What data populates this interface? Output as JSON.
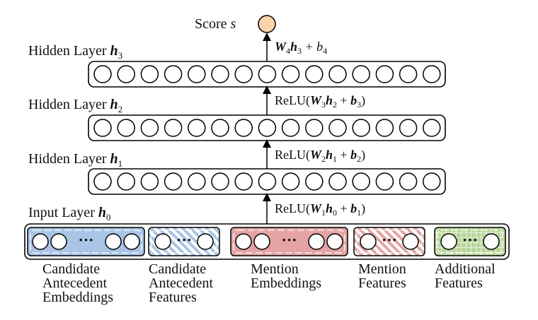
{
  "score": {
    "label": "Score",
    "var": "s",
    "color": "#fbd3a9"
  },
  "hidden_layers": [
    {
      "label": "Hidden Layer",
      "sym": "h",
      "sub": "3",
      "eq": {
        "pre": "",
        "w": "W",
        "wsub": "4",
        "h": "h",
        "hsub": "3",
        "plus": " + b",
        "bsub": "4",
        "bbold": false,
        "post": ""
      }
    },
    {
      "label": "Hidden Layer",
      "sym": "h",
      "sub": "2",
      "eq": {
        "pre": "ReLU(",
        "w": "W",
        "wsub": "3",
        "h": "h",
        "hsub": "2",
        "plus": " + ",
        "b": "b",
        "bsub": "3",
        "bbold": true,
        "post": ")"
      }
    },
    {
      "label": "Hidden Layer",
      "sym": "h",
      "sub": "1",
      "eq": {
        "pre": "ReLU(",
        "w": "W",
        "wsub": "2",
        "h": "h",
        "hsub": "1",
        "plus": " + ",
        "b": "b",
        "bsub": "2",
        "bbold": true,
        "post": ")"
      }
    }
  ],
  "input_layer": {
    "label": "Input Layer",
    "sym": "h",
    "sub": "0",
    "eq": {
      "pre": "ReLU(",
      "w": "W",
      "wsub": "1",
      "h": "h",
      "hsub": "0",
      "plus": " + ",
      "b": "b",
      "bsub": "1",
      "bbold": true,
      "post": ")"
    }
  },
  "neurons_per_layer": 15,
  "dots": "···",
  "groups": [
    {
      "id": "candidate-antecedent-embeddings",
      "lines": [
        "Candidate",
        "Antecedent",
        "Embeddings"
      ],
      "fill": "#a9c4e4",
      "pattern": "solid",
      "circles": 4,
      "dotted": true
    },
    {
      "id": "candidate-antecedent-features",
      "lines": [
        "Candidate",
        "Antecedent",
        "Features"
      ],
      "fill": "#a9c4e4",
      "pattern": "stripes",
      "circles": 2,
      "dotted": true
    },
    {
      "id": "mention-embeddings",
      "lines": [
        "Mention",
        "Embeddings"
      ],
      "fill": "#e5a3a3",
      "pattern": "solid",
      "circles": 4,
      "dotted": true
    },
    {
      "id": "mention-features",
      "lines": [
        "Mention",
        "Features"
      ],
      "fill": "#e5a3a3",
      "pattern": "stripes",
      "circles": 2,
      "dotted": true
    },
    {
      "id": "additional-features",
      "lines": [
        "Additional",
        "Features"
      ],
      "fill": "#b8d69a",
      "pattern": "grid",
      "circles": 2,
      "dotted": true
    }
  ]
}
